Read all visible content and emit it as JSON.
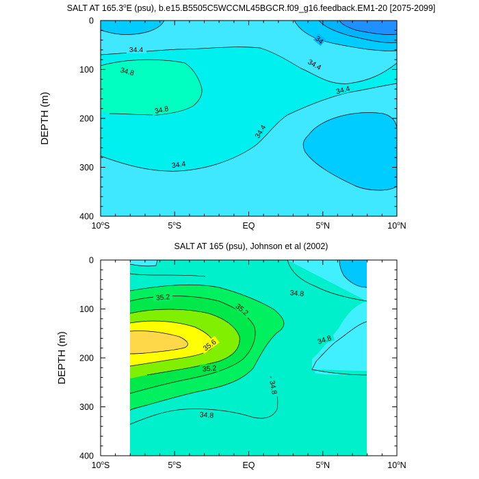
{
  "chart_data": [
    {
      "type": "contour",
      "title_parts": [
        "SALT AT 165.3",
        "o",
        "E (psu), b.e15.B5505C5WCCML45BGCR.f09_g16.feedback.EM1-20 [2075-2099]"
      ],
      "ylabel": "DEPTH (m)",
      "x_ticks": [
        "10°S",
        "5°S",
        "EQ",
        "5°N",
        "10°N"
      ],
      "x_tick_parts": [
        [
          "10",
          "o",
          "S"
        ],
        [
          "5",
          "o",
          "S"
        ],
        [
          "EQ",
          "",
          ""
        ],
        [
          "5",
          "o",
          "N"
        ],
        [
          "10",
          "o",
          "N"
        ]
      ],
      "x_values": [
        -10,
        -5,
        0,
        5,
        10
      ],
      "y_ticks": [
        "0",
        "100",
        "200",
        "300",
        "400"
      ],
      "y_values": [
        0,
        100,
        200,
        300,
        400
      ],
      "xlim": [
        -10,
        10
      ],
      "ylim": [
        400,
        0
      ],
      "data_extent_x": [
        -10,
        10
      ],
      "data_extent_y": [
        5,
        400
      ],
      "contour_labels": [
        "34.4",
        "34",
        "34.8",
        "34.4",
        "34.8",
        "34.4",
        "34.4",
        "34.4"
      ],
      "fill_levels": [
        {
          "range": "< 34.0",
          "color": "#1e90ff"
        },
        {
          "range": "34.0-34.2",
          "color": "#00b4ff"
        },
        {
          "range": "34.2-34.4",
          "color": "#40e8ff"
        },
        {
          "range": "34.4-34.6",
          "color": "#00f0f0"
        },
        {
          "range": "34.6-34.8",
          "color": "#00ccff"
        },
        {
          "range": "34.8-35.0",
          "color": "#00ffc0"
        }
      ]
    },
    {
      "type": "contour",
      "title": "SALT AT 165 (psu), Johnson et al (2002)",
      "ylabel": "DEPTH (m)",
      "x_ticks": [
        "10°S",
        "5°S",
        "EQ",
        "5°N",
        "10°N"
      ],
      "x_tick_parts": [
        [
          "10",
          "o",
          "S"
        ],
        [
          "5",
          "o",
          "S"
        ],
        [
          "EQ",
          "",
          ""
        ],
        [
          "5",
          "o",
          "N"
        ],
        [
          "10",
          "o",
          "N"
        ]
      ],
      "x_values": [
        -10,
        -5,
        0,
        5,
        10
      ],
      "y_ticks": [
        "0",
        "100",
        "200",
        "300",
        "400"
      ],
      "y_values": [
        0,
        100,
        200,
        300,
        400
      ],
      "xlim": [
        -10,
        10
      ],
      "ylim": [
        400,
        0
      ],
      "data_extent_x": [
        -8,
        8
      ],
      "data_extent_y": [
        5,
        400
      ],
      "contour_labels": [
        "35.2",
        "35.2",
        "34.8",
        "34.8",
        "35.6",
        "35.2",
        "34.8",
        "34.8"
      ],
      "fill_levels": [
        {
          "range": "< 34.6",
          "color": "#00c8ff"
        },
        {
          "range": "34.6-34.8",
          "color": "#40f0ff"
        },
        {
          "range": "34.8-35.0",
          "color": "#00f0cc"
        },
        {
          "range": "35.0-35.2",
          "color": "#00f060"
        },
        {
          "range": "35.2-35.4",
          "color": "#00e84a"
        },
        {
          "range": "35.4-35.6",
          "color": "#80f000"
        },
        {
          "range": "35.6-35.8",
          "color": "#ffff00"
        },
        {
          "range": "> 35.8",
          "color": "#ffd84a"
        }
      ]
    }
  ]
}
